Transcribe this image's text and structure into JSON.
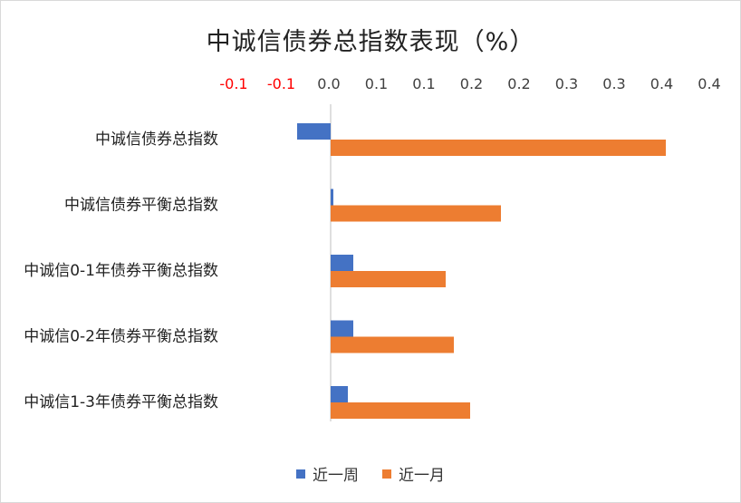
{
  "chart_data": {
    "type": "bar",
    "orientation": "horizontal",
    "title": "中诚信债券总指数表现（%）",
    "xlabel": "",
    "ylabel": "",
    "xlim": [
      -0.1,
      0.4
    ],
    "x_tick_labels": [
      "-0.1",
      "-0.1",
      "0.0",
      "0.1",
      "0.1",
      "0.2",
      "0.2",
      "0.3",
      "0.3",
      "0.4",
      "0.4"
    ],
    "negative_tick_color": "#ff0000",
    "categories": [
      "中诚信债券总指数",
      "中诚信债券平衡总指数",
      "中诚信0-1年债券平衡总指数",
      "中诚信0-2年债券平衡总指数",
      "中诚信1-3年债券平衡总指数"
    ],
    "series": [
      {
        "name": "近一周",
        "color": "#4472c4",
        "values": [
          -0.037,
          0.003,
          0.025,
          0.025,
          0.019
        ]
      },
      {
        "name": "近一月",
        "color": "#ed7d31",
        "values": [
          0.37,
          0.188,
          0.127,
          0.136,
          0.154
        ]
      }
    ],
    "grid": false,
    "legend_position": "bottom"
  }
}
